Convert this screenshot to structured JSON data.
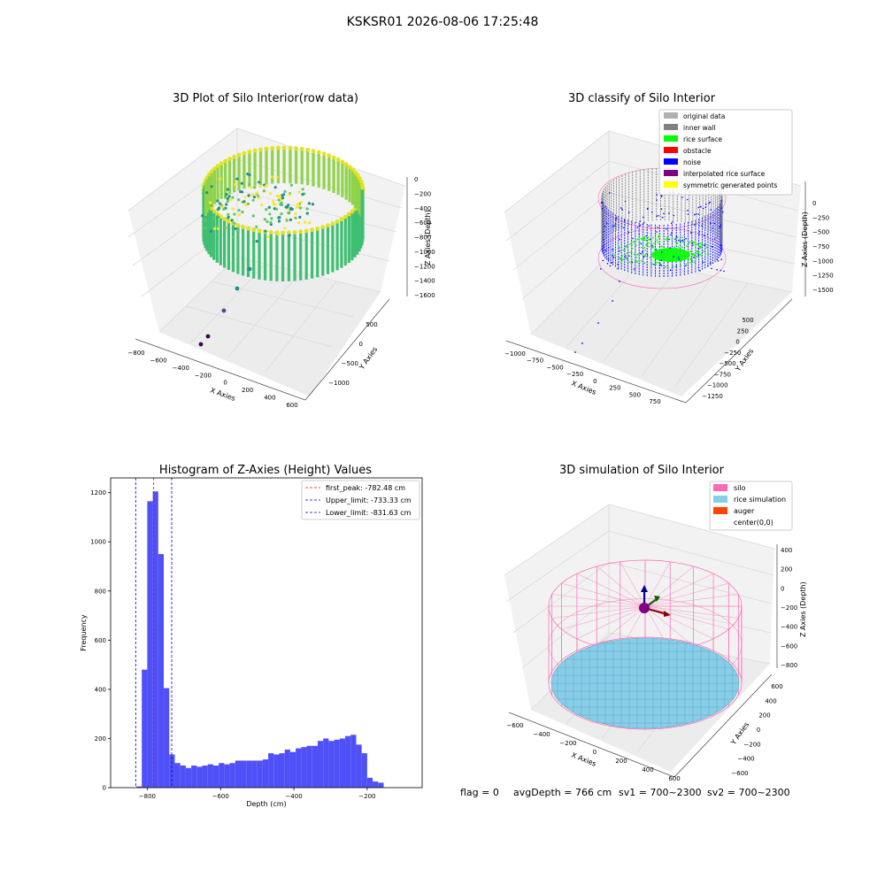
{
  "figure_title": "KSKSR01 2026-08-06 17:25:48",
  "footer": {
    "flag": "flag = 0",
    "avgDepth": "avgDepth = 766 cm",
    "sv1": "sv1 = 700~2300",
    "sv2": "sv2 = 700~2300"
  },
  "colors": {
    "histogram_bar": "#5050f8",
    "first_peak_line": "#ff0000",
    "limit_lines": "#0000cc",
    "silo": "#ff69b4",
    "rice_simulation": "#87ceeb",
    "auger": "#ff4500",
    "inner_wall": "#808080",
    "rice_surface": "#00ff00",
    "obstacle": "#ff0000",
    "noise": "#0000ff",
    "interpolated": "#800080",
    "symmetric": "#ffff00",
    "original": "#b0b0b0"
  },
  "chart_data": [
    {
      "type": "scatter",
      "projection": "3d",
      "title": "3D Plot of Silo Interior(row data)",
      "xlabel": "X Axies",
      "ylabel": "Y Axies",
      "zlabel": "Z Axies (Depth)",
      "x_ticks": [
        "−800",
        "−600",
        "−400",
        "−200",
        "0",
        "200",
        "400",
        "600"
      ],
      "y_ticks": [
        "500",
        "0",
        "−500",
        "−1000"
      ],
      "z_ticks": [
        "0",
        "−200",
        "−400",
        "−600",
        "−800",
        "−1000",
        "−1200",
        "−1400",
        "−1600"
      ],
      "colormap": "viridis",
      "grid": true,
      "legend": "none"
    },
    {
      "type": "scatter",
      "projection": "3d",
      "title": "3D classify of Silo Interior",
      "xlabel": "X Axies",
      "ylabel": "Y Axies",
      "zlabel": "Z Axies (Depth)",
      "x_ticks": [
        "−1000",
        "−750",
        "−500",
        "−250",
        "0",
        "250",
        "500",
        "750"
      ],
      "y_ticks": [
        "500",
        "250",
        "0",
        "−250",
        "−500",
        "−750",
        "−1000",
        "−1250"
      ],
      "z_ticks": [
        "0",
        "−250",
        "−500",
        "−750",
        "−1000",
        "−1250",
        "−1500"
      ],
      "legend_position": "top-right",
      "legend": [
        {
          "label": "original data",
          "color": "#b0b0b0"
        },
        {
          "label": "inner wall",
          "color": "#808080"
        },
        {
          "label": "rice surface",
          "color": "#00ff00"
        },
        {
          "label": "obstacle",
          "color": "#ff0000"
        },
        {
          "label": "noise",
          "color": "#0000ff"
        },
        {
          "label": "interpolated rice surface",
          "color": "#800080"
        },
        {
          "label": "symmetric generated points",
          "color": "#ffff00"
        }
      ]
    },
    {
      "type": "bar",
      "title": "Histogram of Z-Axies (Height) Values",
      "xlabel": "Depth (cm)",
      "ylabel": "Frequency",
      "xlim": [
        -900,
        -50
      ],
      "ylim": [
        0,
        1260
      ],
      "x_ticks": [
        -800,
        -600,
        -400,
        -200
      ],
      "y_ticks": [
        0,
        200,
        400,
        600,
        800,
        1000,
        1200
      ],
      "bin_width": 15,
      "bin_start": -830,
      "values": [
        5,
        480,
        1165,
        1205,
        950,
        405,
        135,
        100,
        90,
        80,
        90,
        85,
        90,
        95,
        90,
        100,
        95,
        100,
        110,
        110,
        110,
        110,
        110,
        115,
        140,
        135,
        140,
        155,
        145,
        160,
        165,
        170,
        170,
        190,
        200,
        190,
        195,
        200,
        210,
        215,
        175,
        140,
        40,
        25,
        20
      ],
      "series_color": "#5050f8",
      "vlines": [
        {
          "name": "first_peak: -782.48 cm",
          "x": -782.48,
          "color": "#ff0000"
        },
        {
          "name": "Upper_limit: -733.33 cm",
          "x": -733.33,
          "color": "#0000cc"
        },
        {
          "name": "Lower_limit: -831.63 cm",
          "x": -831.63,
          "color": "#0000cc"
        }
      ],
      "legend_position": "top-right"
    },
    {
      "type": "surface",
      "projection": "3d",
      "title": "3D simulation of Silo Interior",
      "xlabel": "X Axies",
      "ylabel": "Y Axies",
      "zlabel": "Z Axies (Depth)",
      "x_ticks": [
        "−600",
        "−400",
        "−200",
        "0",
        "200",
        "400",
        "600"
      ],
      "y_ticks": [
        "600",
        "400",
        "200",
        "0",
        "−200",
        "−400",
        "−600"
      ],
      "z_ticks": [
        "400",
        "200",
        "0",
        "−200",
        "−400",
        "−600",
        "−800"
      ],
      "legend_position": "top-right",
      "legend": [
        {
          "label": "silo",
          "color": "#ff69b4"
        },
        {
          "label": "rice simulation",
          "color": "#87ceeb"
        },
        {
          "label": "auger",
          "color": "#ff4500"
        },
        {
          "label": "center(0,0)",
          "color": ""
        }
      ]
    }
  ]
}
